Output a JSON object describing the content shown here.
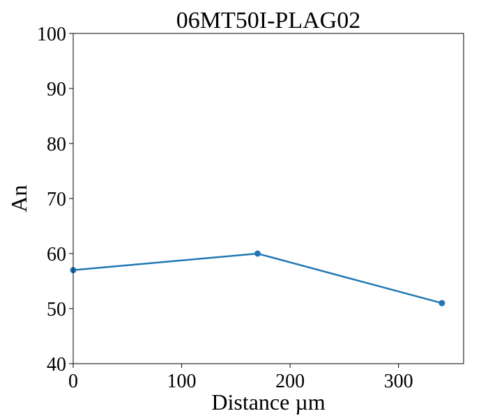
{
  "chart_data": {
    "type": "line",
    "title": "06MT50I-PLAG02",
    "xlabel": "Distance µm",
    "ylabel": "An",
    "xlim": [
      0,
      360
    ],
    "ylim": [
      40,
      100
    ],
    "xticks": [
      0,
      100,
      200,
      300
    ],
    "yticks": [
      40,
      50,
      60,
      70,
      80,
      90,
      100
    ],
    "grid": false,
    "series": [
      {
        "color": "#1f77b4",
        "marker": "circle",
        "x": [
          0,
          170,
          340
        ],
        "y": [
          57,
          60,
          51
        ]
      }
    ]
  }
}
